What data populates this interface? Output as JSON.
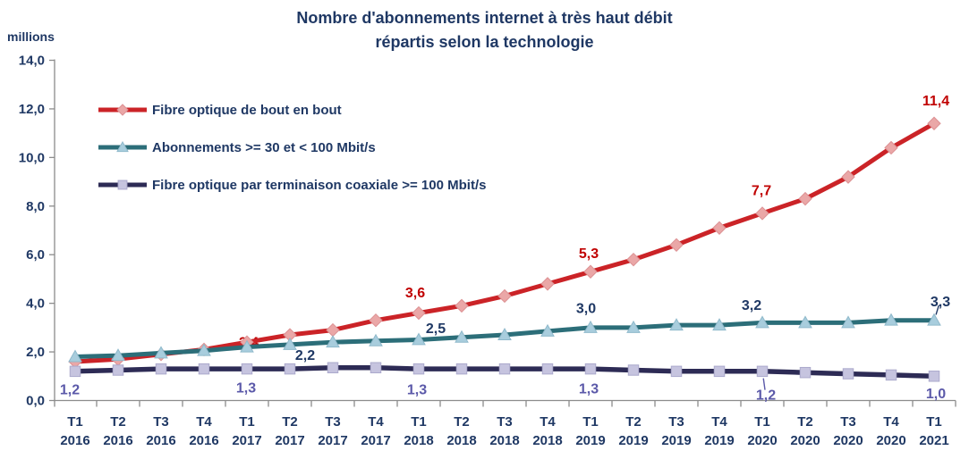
{
  "title": {
    "line1": "Nombre d'abonnements internet à très haut débit",
    "line2": "répartis selon la technologie"
  },
  "y_axis_unit": "millions",
  "colors": {
    "text": "#1F3864",
    "axis": "#8C8C8C",
    "background": "#FFFFFF"
  },
  "chart_data": {
    "type": "line",
    "title": "Nombre d'abonnements internet à très haut débit répartis selon la technologie",
    "unit": "millions",
    "ylim": [
      0,
      14
    ],
    "y_tick_step": 2,
    "y_tick_labels": [
      "0,0",
      "2,0",
      "4,0",
      "6,0",
      "8,0",
      "10,0",
      "12,0",
      "14,0"
    ],
    "grid": false,
    "legend_position": "upper-left-inside",
    "categories": [
      {
        "q": "T1",
        "year": "2016"
      },
      {
        "q": "T2",
        "year": "2016"
      },
      {
        "q": "T3",
        "year": "2016"
      },
      {
        "q": "T4",
        "year": "2016"
      },
      {
        "q": "T1",
        "year": "2017"
      },
      {
        "q": "T2",
        "year": "2017"
      },
      {
        "q": "T3",
        "year": "2017"
      },
      {
        "q": "T4",
        "year": "2017"
      },
      {
        "q": "T1",
        "year": "2018"
      },
      {
        "q": "T2",
        "year": "2018"
      },
      {
        "q": "T3",
        "year": "2018"
      },
      {
        "q": "T4",
        "year": "2018"
      },
      {
        "q": "T1",
        "year": "2019"
      },
      {
        "q": "T2",
        "year": "2019"
      },
      {
        "q": "T3",
        "year": "2019"
      },
      {
        "q": "T4",
        "year": "2019"
      },
      {
        "q": "T1",
        "year": "2020"
      },
      {
        "q": "T2",
        "year": "2020"
      },
      {
        "q": "T3",
        "year": "2020"
      },
      {
        "q": "T4",
        "year": "2020"
      },
      {
        "q": "T1",
        "year": "2021"
      }
    ],
    "series": [
      {
        "name": "Fibre optique de bout en bout",
        "marker": "diamond",
        "line_color": "#CB2327",
        "marker_fill": "#EAA7A7",
        "marker_edge": "#DC9193",
        "label_color": "#C00000",
        "values": [
          1.6,
          1.7,
          1.9,
          2.1,
          2.4,
          2.7,
          2.9,
          3.3,
          3.6,
          3.9,
          4.3,
          4.8,
          5.3,
          5.8,
          6.4,
          7.1,
          7.7,
          8.3,
          9.2,
          10.4,
          11.4
        ],
        "data_labels": [
          {
            "i": 4,
            "text": "2,4",
            "dx": 2,
            "dy": 0,
            "behind": true
          },
          {
            "i": 8,
            "text": "3,6",
            "dx": -4,
            "dy": -23
          },
          {
            "i": 12,
            "text": "5,3",
            "dx": -2,
            "dy": -21
          },
          {
            "i": 16,
            "text": "7,7",
            "dx": -1,
            "dy": -26
          },
          {
            "i": 20,
            "text": "11,4",
            "dx": 2,
            "dy": -26
          }
        ]
      },
      {
        "name": "Abonnements >= 30 et < 100 Mbit/s",
        "marker": "triangle",
        "line_color": "#2C6E79",
        "marker_fill": "#A8CDDD",
        "marker_edge": "#8FB9CB",
        "label_color": "#1F3864",
        "values": [
          1.8,
          1.85,
          1.95,
          2.05,
          2.2,
          2.3,
          2.4,
          2.45,
          2.5,
          2.6,
          2.7,
          2.85,
          3.0,
          3.0,
          3.1,
          3.1,
          3.2,
          3.2,
          3.2,
          3.3,
          3.3
        ],
        "data_labels": [
          {
            "i": 4,
            "text": "2,2",
            "dx": 65,
            "dy": 9
          },
          {
            "i": 8,
            "text": "2,5",
            "dx": 19,
            "dy": -13
          },
          {
            "i": 12,
            "text": "3,0",
            "dx": -5,
            "dy": -22
          },
          {
            "i": 16,
            "text": "3,2",
            "dx": -12,
            "dy": -20
          },
          {
            "i": 20,
            "text": "3,3",
            "dx": 7,
            "dy": -21,
            "leader": true
          }
        ]
      },
      {
        "name": "Fibre optique par terminaison coaxiale >= 100 Mbit/s",
        "marker": "square",
        "line_color": "#2D2B55",
        "marker_fill": "#C6C4DF",
        "marker_edge": "#ABA9CC",
        "label_color": "#5B59A9",
        "values": [
          1.2,
          1.25,
          1.3,
          1.3,
          1.3,
          1.3,
          1.35,
          1.35,
          1.3,
          1.3,
          1.3,
          1.3,
          1.3,
          1.25,
          1.2,
          1.2,
          1.2,
          1.15,
          1.1,
          1.05,
          1.0
        ],
        "data_labels": [
          {
            "i": 0,
            "text": "1,2",
            "dx": -6,
            "dy": 20
          },
          {
            "i": 4,
            "text": "1,3",
            "dx": -1,
            "dy": 21
          },
          {
            "i": 8,
            "text": "1,3",
            "dx": -2,
            "dy": 23
          },
          {
            "i": 12,
            "text": "1,3",
            "dx": -2,
            "dy": 22
          },
          {
            "i": 16,
            "text": "1,2",
            "dx": 4,
            "dy": 26,
            "leader": true
          },
          {
            "i": 20,
            "text": "1,0",
            "dx": 2,
            "dy": 19
          }
        ]
      }
    ]
  }
}
